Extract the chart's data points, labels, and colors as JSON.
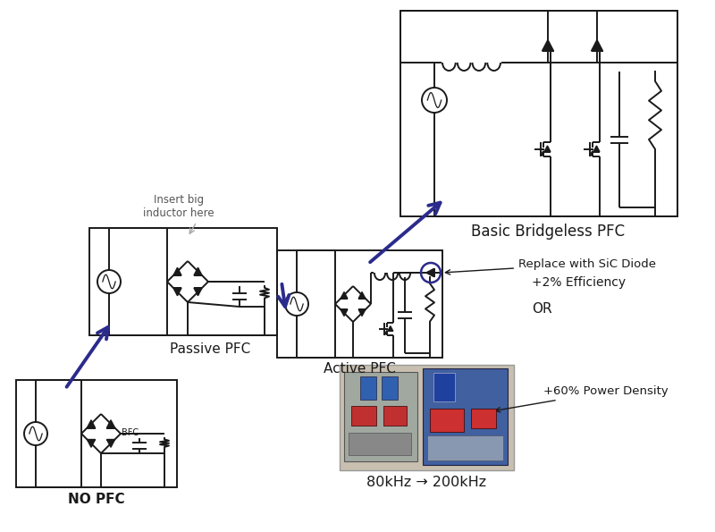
{
  "bg_color": "#ffffff",
  "arrow_color": "#2b2b8c",
  "line_color": "#1a1a1a",
  "label_no_pfc": "NO PFC",
  "label_passive_pfc": "Passive PFC",
  "label_active_pfc": "Active PFC",
  "label_bridgeless_pfc": "Basic Bridgeless PFC",
  "label_insert": "Insert big\ninductor here",
  "label_replace": "Replace with SiC Diode",
  "label_efficiency": "+2% Efficiency",
  "label_or": "OR",
  "label_power_density": "+60% Power Density",
  "label_freq": "80kHz → 200kHz",
  "arrow_lw": 2.8,
  "lw": 1.4
}
